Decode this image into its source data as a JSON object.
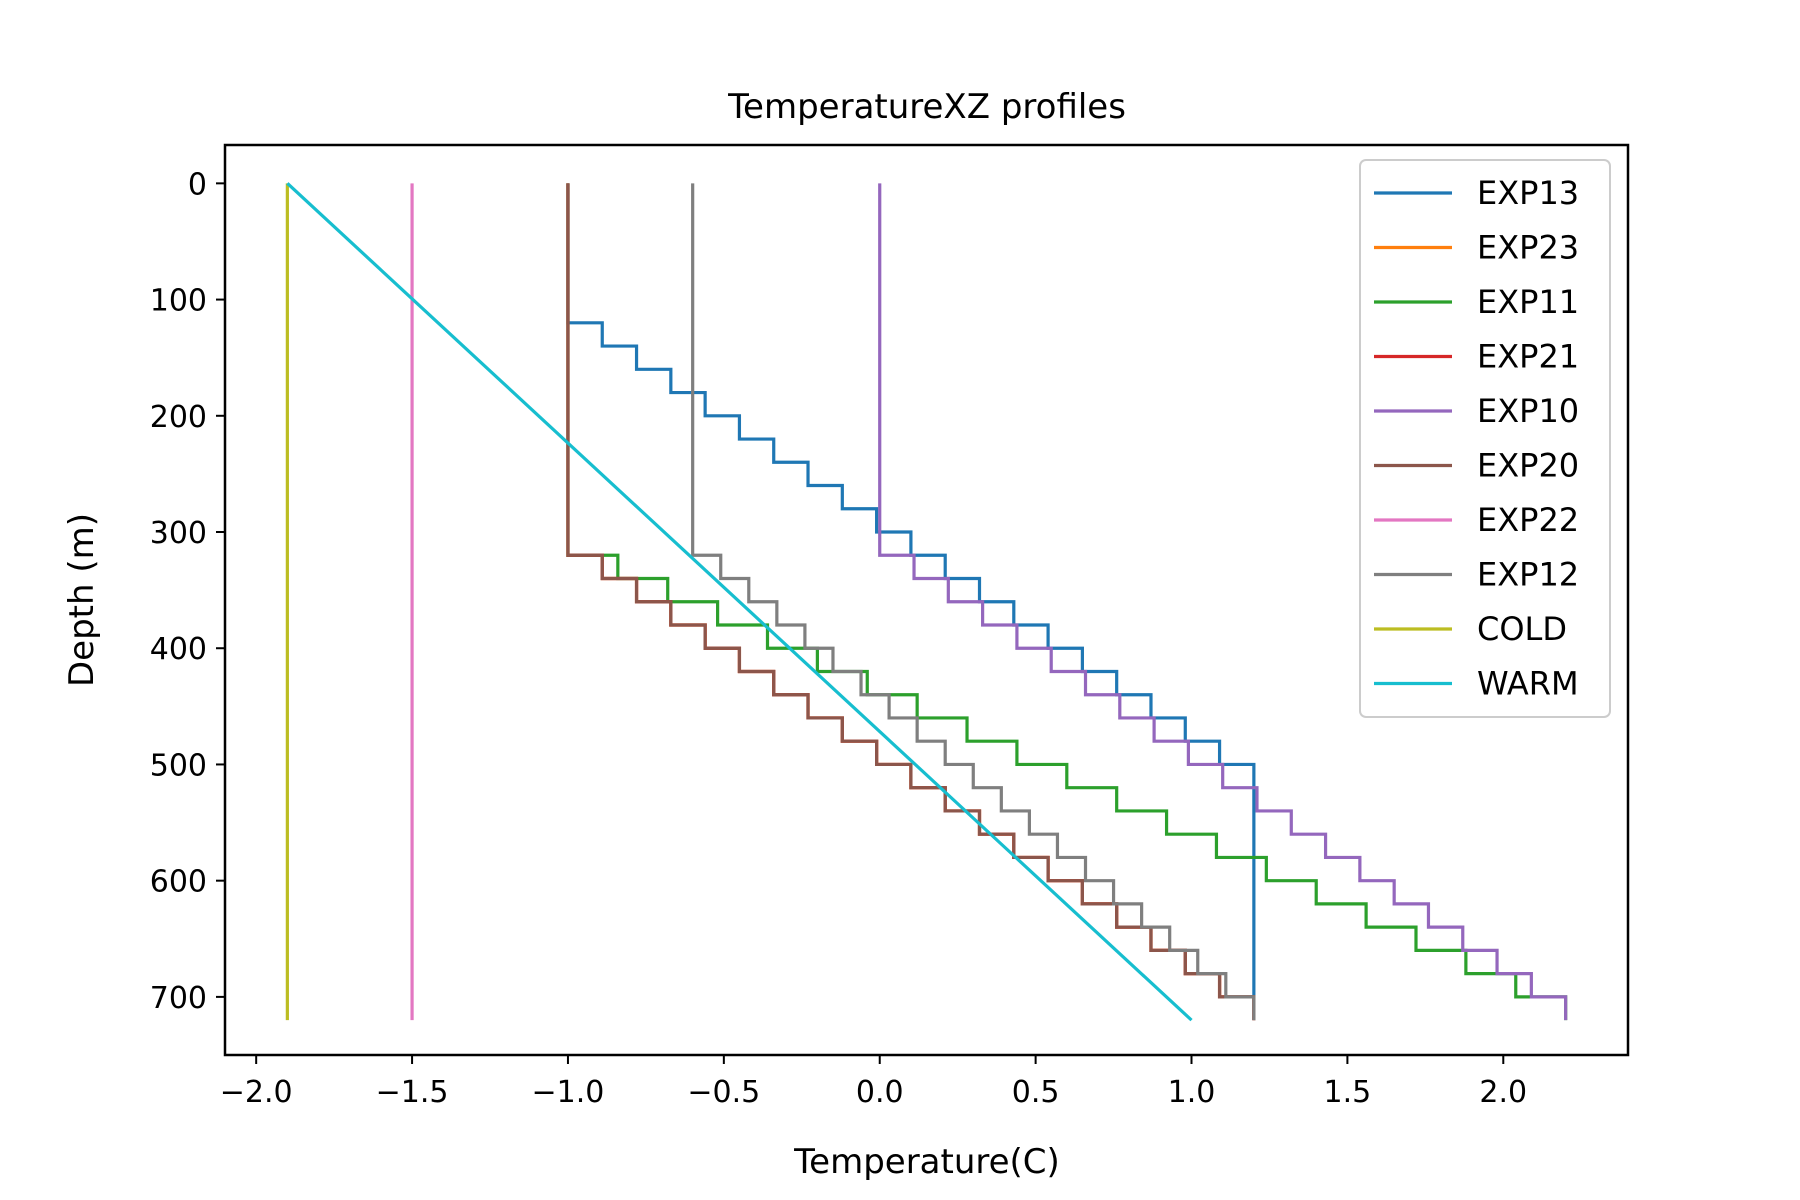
{
  "chart_data": {
    "type": "line",
    "title": "TemperatureXZ profiles",
    "xlabel": "Temperature(C)",
    "ylabel": "Depth (m)",
    "xlim": [
      -2.1,
      2.4
    ],
    "ylim": [
      750,
      -33
    ],
    "y_inverted": true,
    "grid": false,
    "legend_position": "top-right",
    "xticks": [
      -2.0,
      -1.5,
      -1.0,
      -0.5,
      0.0,
      0.5,
      1.0,
      1.5,
      2.0
    ],
    "xtick_labels": [
      "−2.0",
      "−1.5",
      "−1.0",
      "−0.5",
      "0.0",
      "0.5",
      "1.0",
      "1.5",
      "2.0"
    ],
    "yticks": [
      0,
      100,
      200,
      300,
      400,
      500,
      600,
      700
    ],
    "ytick_labels": [
      "0",
      "100",
      "200",
      "300",
      "400",
      "500",
      "600",
      "700"
    ],
    "series": [
      {
        "name": "EXP13",
        "color": "#1f77b4",
        "type": "step",
        "top_temp": -1.0,
        "bottom_temp": 1.2,
        "grad_start": 100,
        "grad_end": 500,
        "step_size": 20
      },
      {
        "name": "EXP23",
        "color": "#ff7f0e",
        "type": "step",
        "top_temp": -1.0,
        "bottom_temp": 1.2,
        "grad_start": 300,
        "grad_end": 700,
        "step_size": 20
      },
      {
        "name": "EXP11",
        "color": "#2ca02c",
        "type": "step",
        "top_temp": -1.0,
        "bottom_temp": 2.2,
        "grad_start": 300,
        "grad_end": 700,
        "step_size": 20
      },
      {
        "name": "EXP21",
        "color": "#d62728",
        "type": "step",
        "top_temp": -1.0,
        "bottom_temp": 1.2,
        "grad_start": 300,
        "grad_end": 700,
        "step_size": 20
      },
      {
        "name": "EXP10",
        "color": "#9467bd",
        "type": "step",
        "top_temp": 0.0,
        "bottom_temp": 2.2,
        "grad_start": 300,
        "grad_end": 700,
        "step_size": 20
      },
      {
        "name": "EXP20",
        "color": "#8c564b",
        "type": "step",
        "top_temp": -1.0,
        "bottom_temp": 1.2,
        "grad_start": 300,
        "grad_end": 700,
        "step_size": 20
      },
      {
        "name": "EXP22",
        "color": "#e377c2",
        "type": "line",
        "x": [
          -1.5,
          -1.5
        ],
        "y": [
          0,
          720
        ]
      },
      {
        "name": "EXP12",
        "color": "#7f7f7f",
        "type": "step",
        "top_temp": -0.6,
        "bottom_temp": 1.2,
        "grad_start": 300,
        "grad_end": 700,
        "step_size": 20
      },
      {
        "name": "COLD",
        "color": "#bcbd22",
        "type": "line",
        "x": [
          -1.9,
          -1.9
        ],
        "y": [
          0,
          720
        ]
      },
      {
        "name": "WARM",
        "color": "#17becf",
        "type": "line",
        "x": [
          -1.9,
          1.0
        ],
        "y": [
          0,
          720
        ]
      }
    ]
  }
}
